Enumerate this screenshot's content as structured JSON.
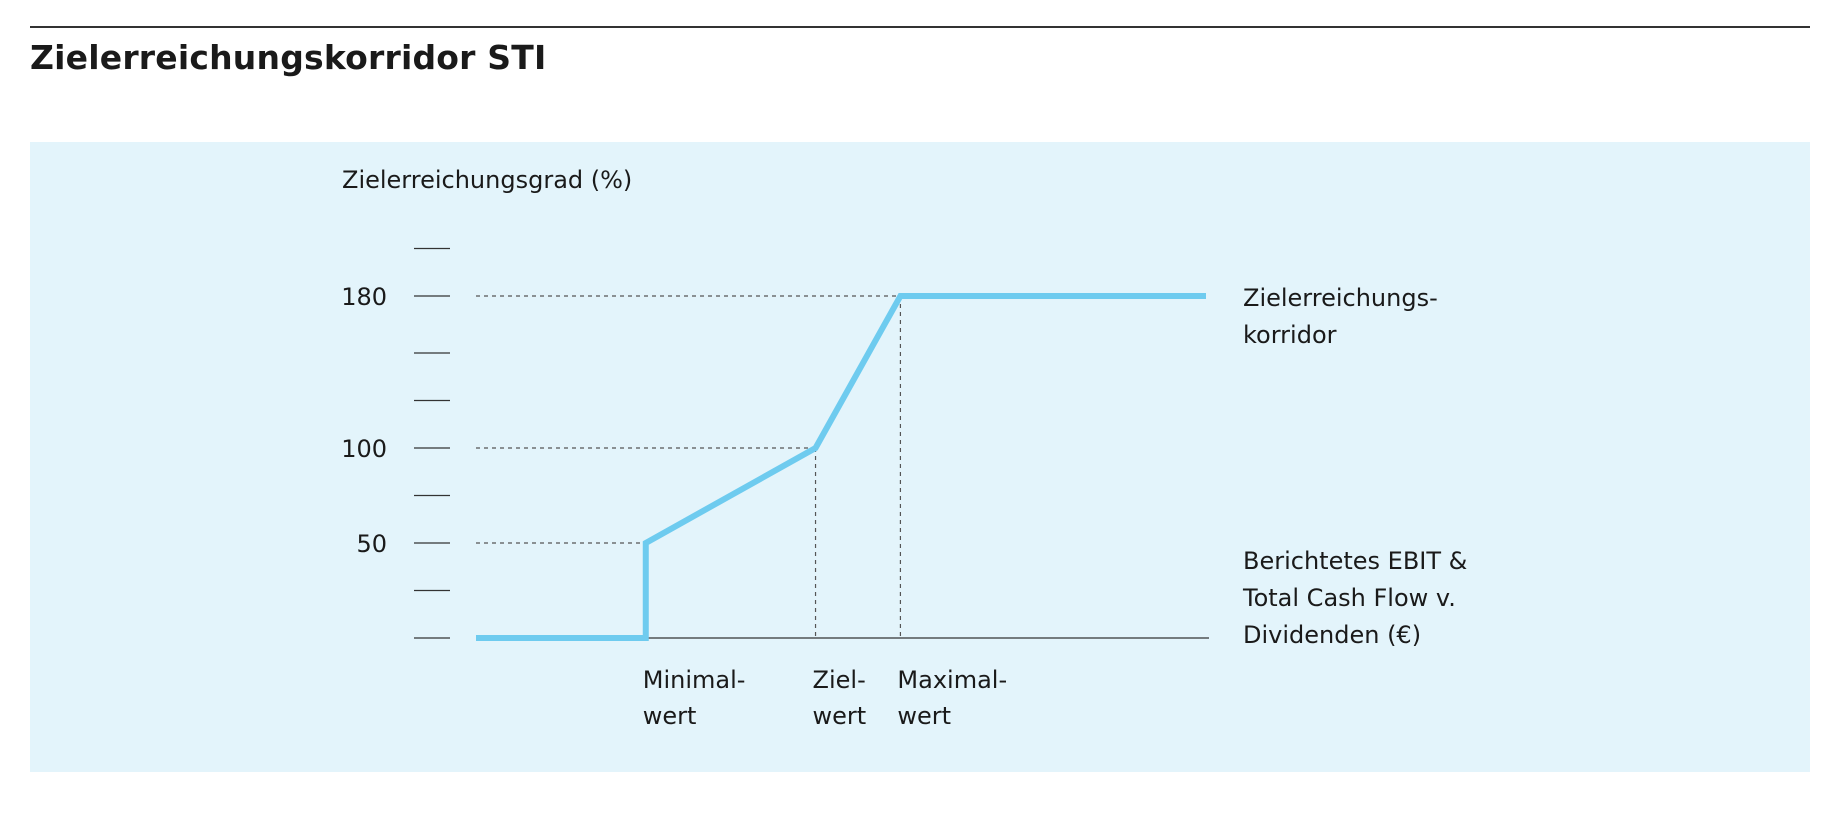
{
  "page": {
    "title": "Zielerreichungskorridor STI"
  },
  "colors": {
    "panel_background": "#e3f4fb",
    "series_line": "#6ecbef",
    "axis": "#333333",
    "guide_lines": "#555555"
  },
  "chart_data": {
    "type": "line",
    "ylabel": "Zielerreichungsgrad (%)",
    "xlabel": [
      "Berichtetes EBIT &",
      "Total Cash Flow v.",
      "Dividenden (€)"
    ],
    "yticks": [
      0,
      25,
      50,
      75,
      100,
      125,
      150,
      180,
      205
    ],
    "ytick_labels": [
      {
        "value": 50,
        "label": "50"
      },
      {
        "value": 100,
        "label": "100"
      },
      {
        "value": 180,
        "label": "180"
      }
    ],
    "x_markers": [
      {
        "x": 2,
        "label": [
          "Minimal-",
          "wert"
        ]
      },
      {
        "x": 4,
        "label": [
          "Ziel-",
          "wert"
        ]
      },
      {
        "x": 5,
        "label": [
          "Maximal-",
          "wert"
        ]
      }
    ],
    "x_range": [
      0,
      8.6
    ],
    "series": [
      {
        "name": [
          "Zielerreichungs-",
          "korridor"
        ],
        "points": [
          [
            0,
            0
          ],
          [
            2,
            0
          ],
          [
            2,
            50
          ],
          [
            4,
            100
          ],
          [
            5,
            180
          ],
          [
            8.6,
            180
          ]
        ]
      }
    ],
    "grid": false,
    "guides": "dashed"
  }
}
